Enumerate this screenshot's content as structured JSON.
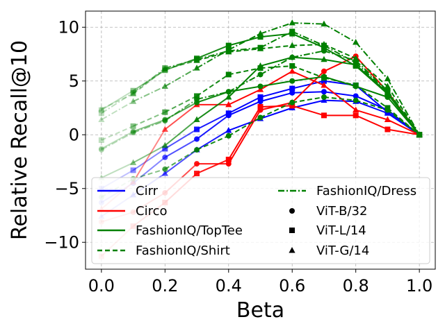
{
  "chart_data": {
    "type": "line",
    "title": "",
    "xlabel": "Beta",
    "ylabel": "Relative Recall@10",
    "xlim": [
      -0.05,
      1.05
    ],
    "ylim": [
      -12.5,
      11.5
    ],
    "xticks": [
      0.0,
      0.2,
      0.4,
      0.6,
      0.8,
      1.0
    ],
    "xtick_labels": [
      "0.0",
      "0.2",
      "0.4",
      "0.6",
      "0.8",
      "1.0"
    ],
    "yticks": [
      -10,
      -5,
      0,
      5,
      10
    ],
    "ytick_labels": [
      "−10",
      "−5",
      "0",
      "5",
      "10"
    ],
    "grid": true,
    "legend_position": "lower-center",
    "x": [
      0.0,
      0.1,
      0.2,
      0.3,
      0.4,
      0.5,
      0.6,
      0.7,
      0.8,
      0.9,
      1.0
    ],
    "legend": {
      "entries": [
        {
          "label": "Cirr",
          "kind": "line",
          "color": "#0000ff",
          "dash": "solid"
        },
        {
          "label": "Circo",
          "kind": "line",
          "color": "#ff0000",
          "dash": "solid"
        },
        {
          "label": "FashionIQ/TopTee",
          "kind": "line",
          "color": "#008000",
          "dash": "solid"
        },
        {
          "label": "FashionIQ/Shirt",
          "kind": "line",
          "color": "#008000",
          "dash": "dashed"
        },
        {
          "label": "FashionIQ/Dress",
          "kind": "line",
          "color": "#008000",
          "dash": "dashdot"
        },
        {
          "label": "ViT-B/32",
          "kind": "marker",
          "marker": "circle"
        },
        {
          "label": "ViT-L/14",
          "kind": "marker",
          "marker": "square"
        },
        {
          "label": "ViT-G/14",
          "kind": "marker",
          "marker": "triangle"
        }
      ]
    },
    "series": [
      {
        "name": "Cirr ViT-B/32",
        "dataset": "Cirr",
        "model": "ViT-B/32",
        "color": "#0000ff",
        "dash": "solid",
        "marker": "circle",
        "values": [
          -6.3,
          -4.5,
          -2.1,
          -0.4,
          1.8,
          3.1,
          3.9,
          4.0,
          3.6,
          2.3,
          0.0
        ]
      },
      {
        "name": "Cirr ViT-L/14",
        "dataset": "Cirr",
        "model": "ViT-L/14",
        "color": "#0000ff",
        "dash": "solid",
        "marker": "square",
        "values": [
          -5.0,
          -3.3,
          -1.3,
          0.5,
          2.0,
          3.5,
          4.3,
          5.0,
          4.6,
          2.1,
          0.0
        ]
      },
      {
        "name": "Cirr ViT-G/14",
        "dataset": "Cirr",
        "model": "ViT-G/14",
        "color": "#0000ff",
        "dash": "solid",
        "marker": "triangle",
        "values": [
          -7.6,
          -5.6,
          -3.6,
          -1.4,
          0.4,
          1.5,
          2.5,
          3.2,
          3.1,
          2.0,
          0.0
        ]
      },
      {
        "name": "Circo ViT-B/32",
        "dataset": "Circo",
        "model": "ViT-B/32",
        "color": "#ff0000",
        "dash": "solid",
        "marker": "circle",
        "values": [
          -8.1,
          -7.2,
          -5.4,
          -2.7,
          -2.7,
          2.3,
          3.0,
          5.9,
          7.3,
          4.0,
          0.0
        ]
      },
      {
        "name": "Circo ViT-L/14",
        "dataset": "Circo",
        "model": "ViT-L/14",
        "color": "#ff0000",
        "dash": "solid",
        "marker": "square",
        "values": [
          -11.3,
          -8.5,
          -6.3,
          -3.6,
          -2.3,
          2.6,
          2.7,
          1.8,
          1.8,
          0.5,
          0.0
        ]
      },
      {
        "name": "Circo ViT-G/14",
        "dataset": "Circo",
        "model": "ViT-G/14",
        "color": "#ff0000",
        "dash": "solid",
        "marker": "triangle",
        "values": [
          -6.9,
          -4.4,
          0.5,
          2.8,
          2.8,
          4.2,
          5.9,
          4.6,
          2.3,
          1.4,
          0.0
        ]
      },
      {
        "name": "FashionIQ/TopTee ViT-B/32",
        "dataset": "FashionIQ/TopTee",
        "model": "ViT-B/32",
        "color": "#008000",
        "dash": "solid",
        "marker": "circle",
        "values": [
          -1.3,
          0.3,
          1.4,
          3.0,
          4.0,
          4.5,
          5.0,
          5.4,
          4.5,
          3.5,
          0.0
        ]
      },
      {
        "name": "FashionIQ/TopTee ViT-L/14",
        "dataset": "FashionIQ/TopTee",
        "model": "ViT-L/14",
        "color": "#008000",
        "dash": "solid",
        "marker": "square",
        "values": [
          2.3,
          4.1,
          6.0,
          7.1,
          8.3,
          9.1,
          9.4,
          8.1,
          6.4,
          3.8,
          0.0
        ]
      },
      {
        "name": "FashionIQ/TopTee ViT-G/14",
        "dataset": "FashionIQ/TopTee",
        "model": "ViT-G/14",
        "color": "#008000",
        "dash": "solid",
        "marker": "triangle",
        "values": [
          -4.0,
          -2.6,
          -1.0,
          1.4,
          3.5,
          6.4,
          7.2,
          7.0,
          6.5,
          3.9,
          0.0
        ]
      },
      {
        "name": "FashionIQ/Shirt ViT-B/32",
        "dataset": "FashionIQ/Shirt",
        "model": "ViT-B/32",
        "color": "#008000",
        "dash": "dashed",
        "marker": "circle",
        "values": [
          -5.8,
          -4.1,
          -3.2,
          -1.4,
          -0.1,
          1.6,
          3.0,
          3.5,
          3.2,
          2.3,
          0.0
        ]
      },
      {
        "name": "FashionIQ/Shirt ViT-L/14",
        "dataset": "FashionIQ/Shirt",
        "model": "ViT-L/14",
        "color": "#008000",
        "dash": "dashed",
        "marker": "square",
        "values": [
          -0.5,
          0.8,
          2.1,
          3.6,
          5.6,
          6.2,
          6.4,
          5.3,
          4.6,
          2.5,
          0.0
        ]
      },
      {
        "name": "FashionIQ/Shirt ViT-G/14",
        "dataset": "FashionIQ/Shirt",
        "model": "ViT-G/14",
        "color": "#008000",
        "dash": "dashed",
        "marker": "triangle",
        "values": [
          2.4,
          3.8,
          6.1,
          6.9,
          7.7,
          8.0,
          8.3,
          8.4,
          7.1,
          4.5,
          0.0
        ]
      },
      {
        "name": "FashionIQ/Dress ViT-B/32",
        "dataset": "FashionIQ/Dress",
        "model": "ViT-B/32",
        "color": "#008000",
        "dash": "dashdot",
        "marker": "circle",
        "values": [
          -1.4,
          0.2,
          1.3,
          3.3,
          4.0,
          5.6,
          7.2,
          7.8,
          6.9,
          4.1,
          0.0
        ]
      },
      {
        "name": "FashionIQ/Dress ViT-L/14",
        "dataset": "FashionIQ/Dress",
        "model": "ViT-L/14",
        "color": "#008000",
        "dash": "dashdot",
        "marker": "square",
        "values": [
          2.0,
          3.9,
          6.2,
          7.0,
          7.8,
          8.1,
          9.6,
          8.3,
          6.7,
          4.0,
          0.0
        ]
      },
      {
        "name": "FashionIQ/Dress ViT-G/14",
        "dataset": "FashionIQ/Dress",
        "model": "ViT-G/14",
        "color": "#008000",
        "dash": "dashdot",
        "marker": "triangle",
        "values": [
          1.4,
          3.1,
          4.5,
          6.2,
          7.9,
          9.4,
          10.4,
          10.3,
          8.6,
          5.2,
          0.0
        ]
      }
    ]
  }
}
